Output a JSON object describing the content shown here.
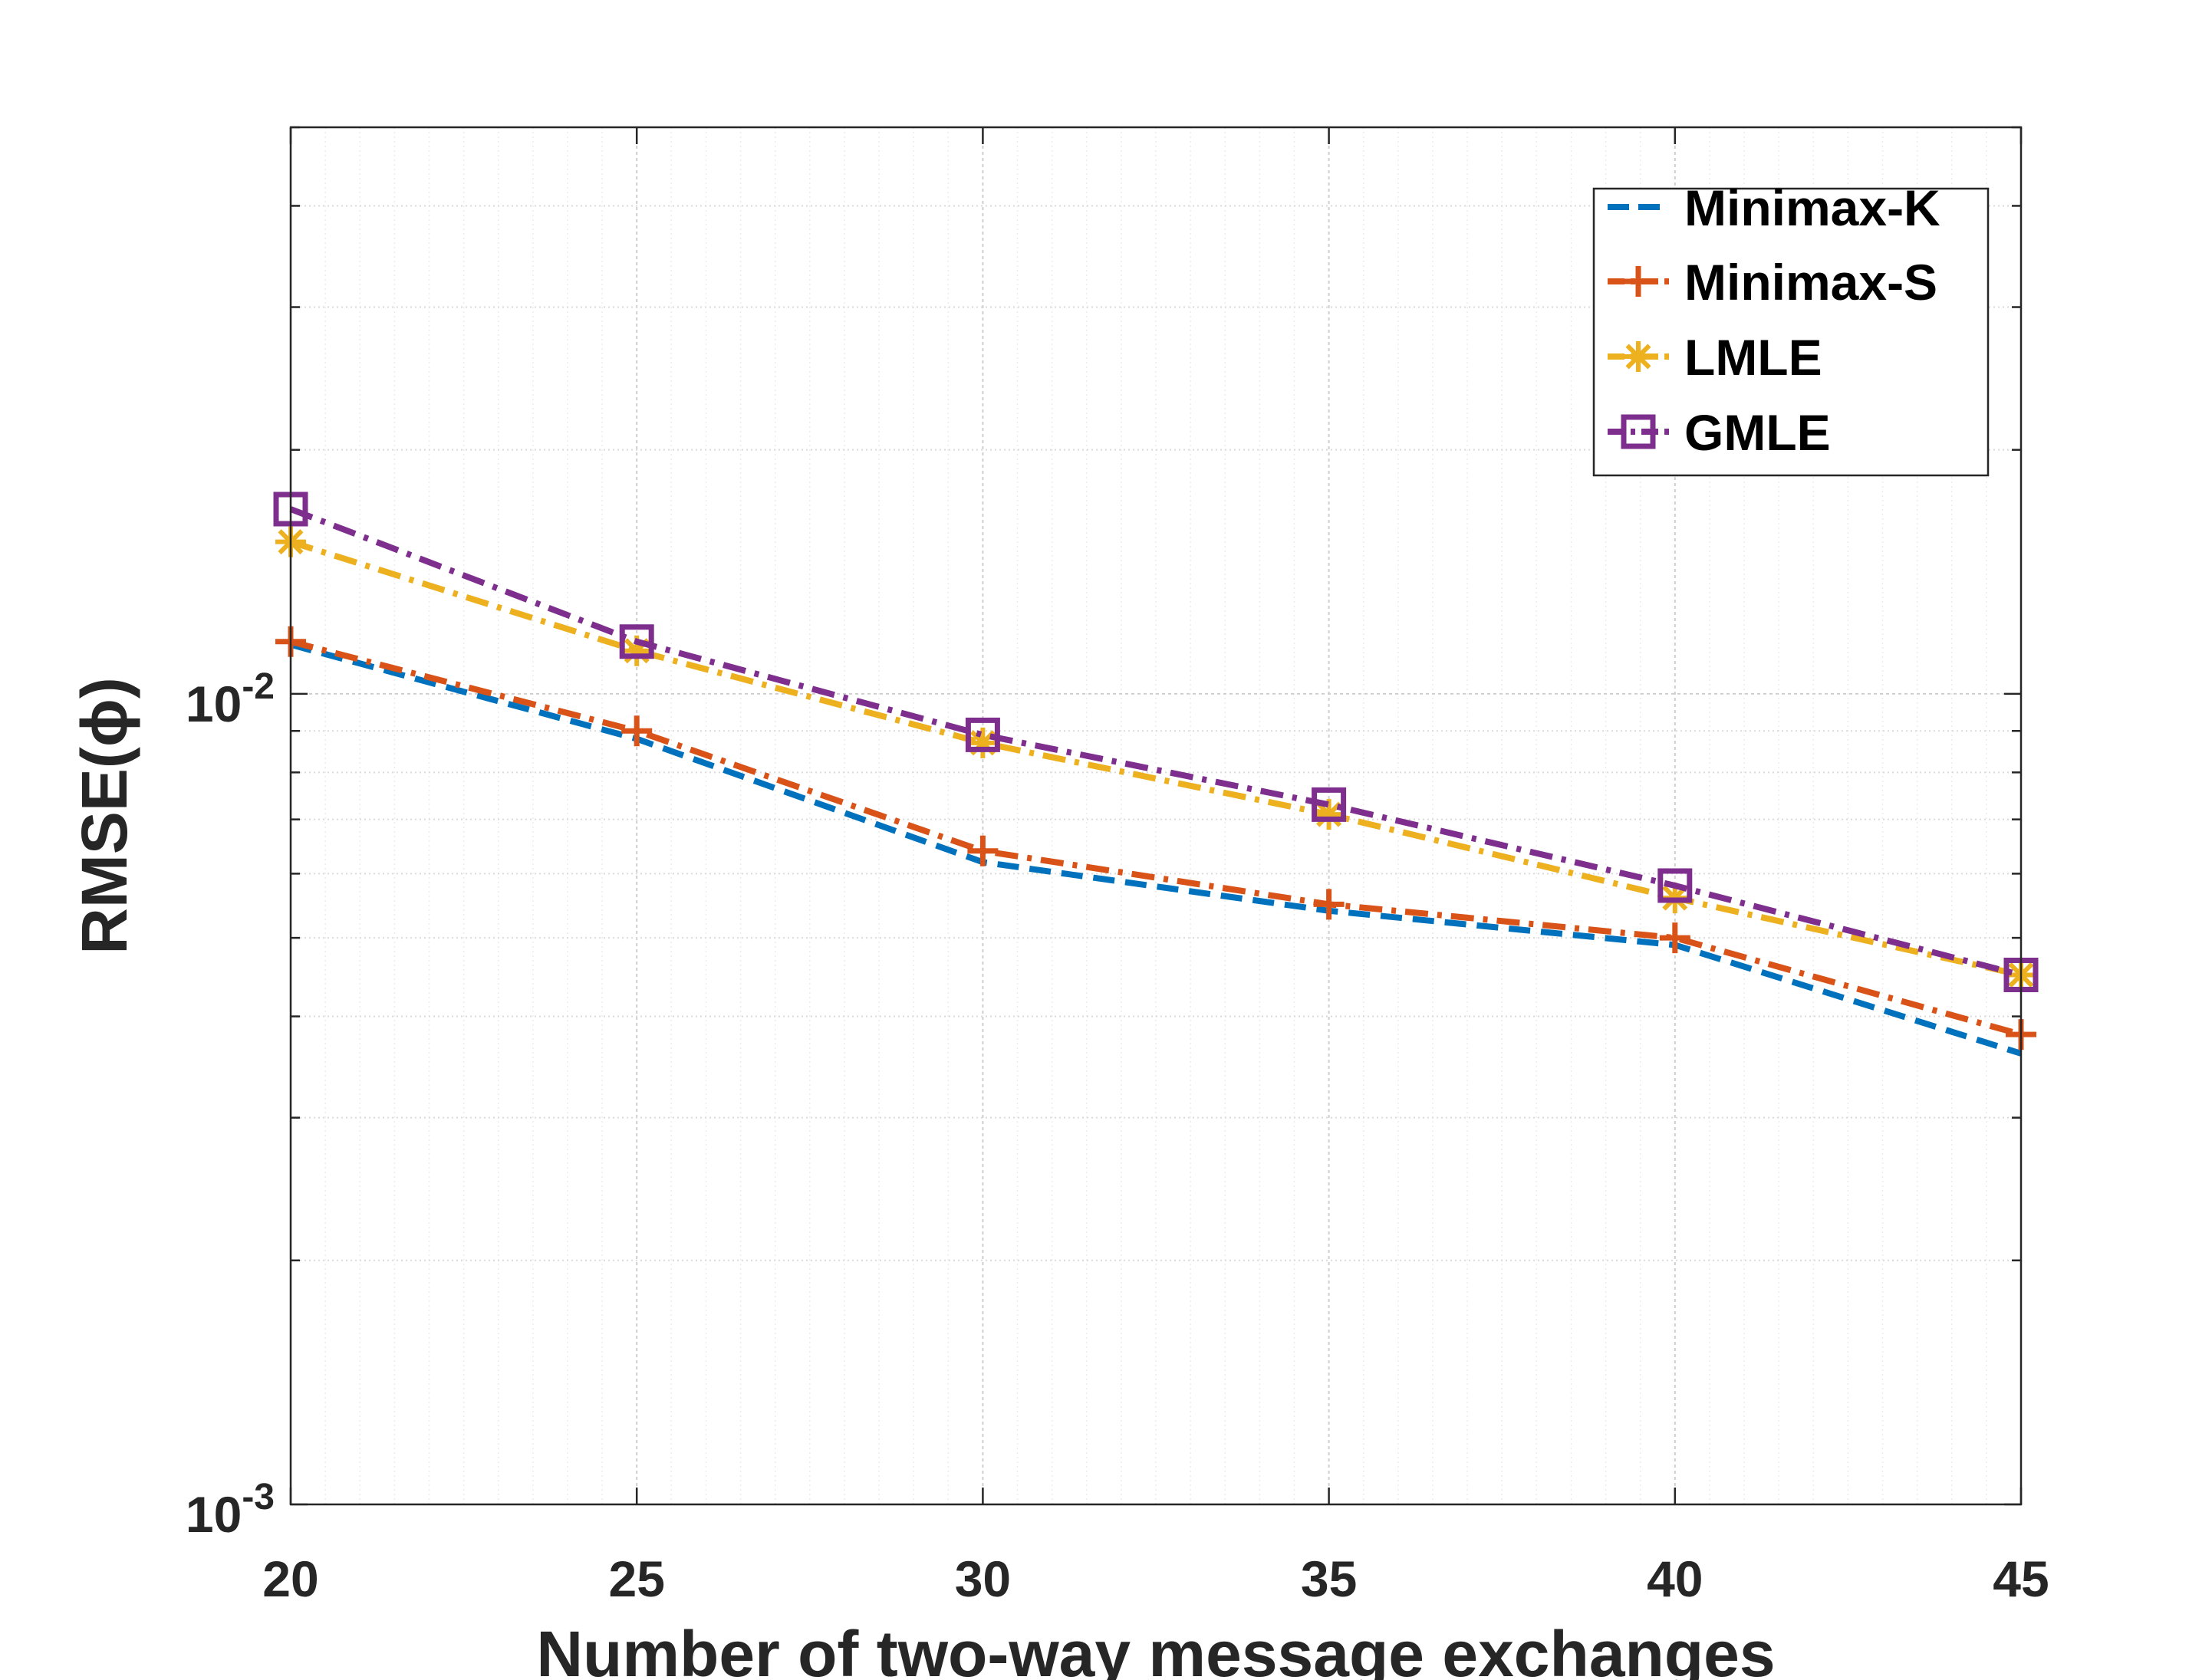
{
  "chart_data": {
    "type": "line",
    "xlabel": "Number of two-way message exchanges",
    "ylabel": "RMSE(ϕ)",
    "y_scale": "log",
    "xlim": [
      20,
      45
    ],
    "ylim": [
      0.001,
      0.05
    ],
    "grid": true,
    "minor_grid": true,
    "legend_position": "top-right",
    "x": [
      20,
      25,
      30,
      35,
      40,
      45
    ],
    "x_ticks": [
      "20",
      "25",
      "30",
      "35",
      "40",
      "45"
    ],
    "y_ticks": [
      {
        "value": 0.01,
        "base": "10",
        "exp": "-2"
      },
      {
        "value": 0.001,
        "base": "10",
        "exp": "-3"
      }
    ],
    "series": [
      {
        "name": "Minimax-K",
        "color": "#0072BD",
        "marker": "none",
        "line_style": "dashed",
        "values": [
          0.0115,
          0.0088,
          0.0062,
          0.0054,
          0.0049,
          0.0036
        ]
      },
      {
        "name": "Minimax-S",
        "color": "#D95319",
        "marker": "plus",
        "line_style": "dash-dot",
        "values": [
          0.0116,
          0.009,
          0.0064,
          0.0055,
          0.005,
          0.0038
        ]
      },
      {
        "name": "LMLE",
        "color": "#EDB120",
        "marker": "asterisk",
        "line_style": "dash-dot",
        "values": [
          0.0154,
          0.0113,
          0.0087,
          0.0071,
          0.0056,
          0.0045
        ]
      },
      {
        "name": "GMLE",
        "color": "#7E2F8E",
        "marker": "square",
        "line_style": "dash-dot",
        "values": [
          0.0169,
          0.0116,
          0.0089,
          0.0073,
          0.0058,
          0.0045
        ]
      }
    ]
  }
}
